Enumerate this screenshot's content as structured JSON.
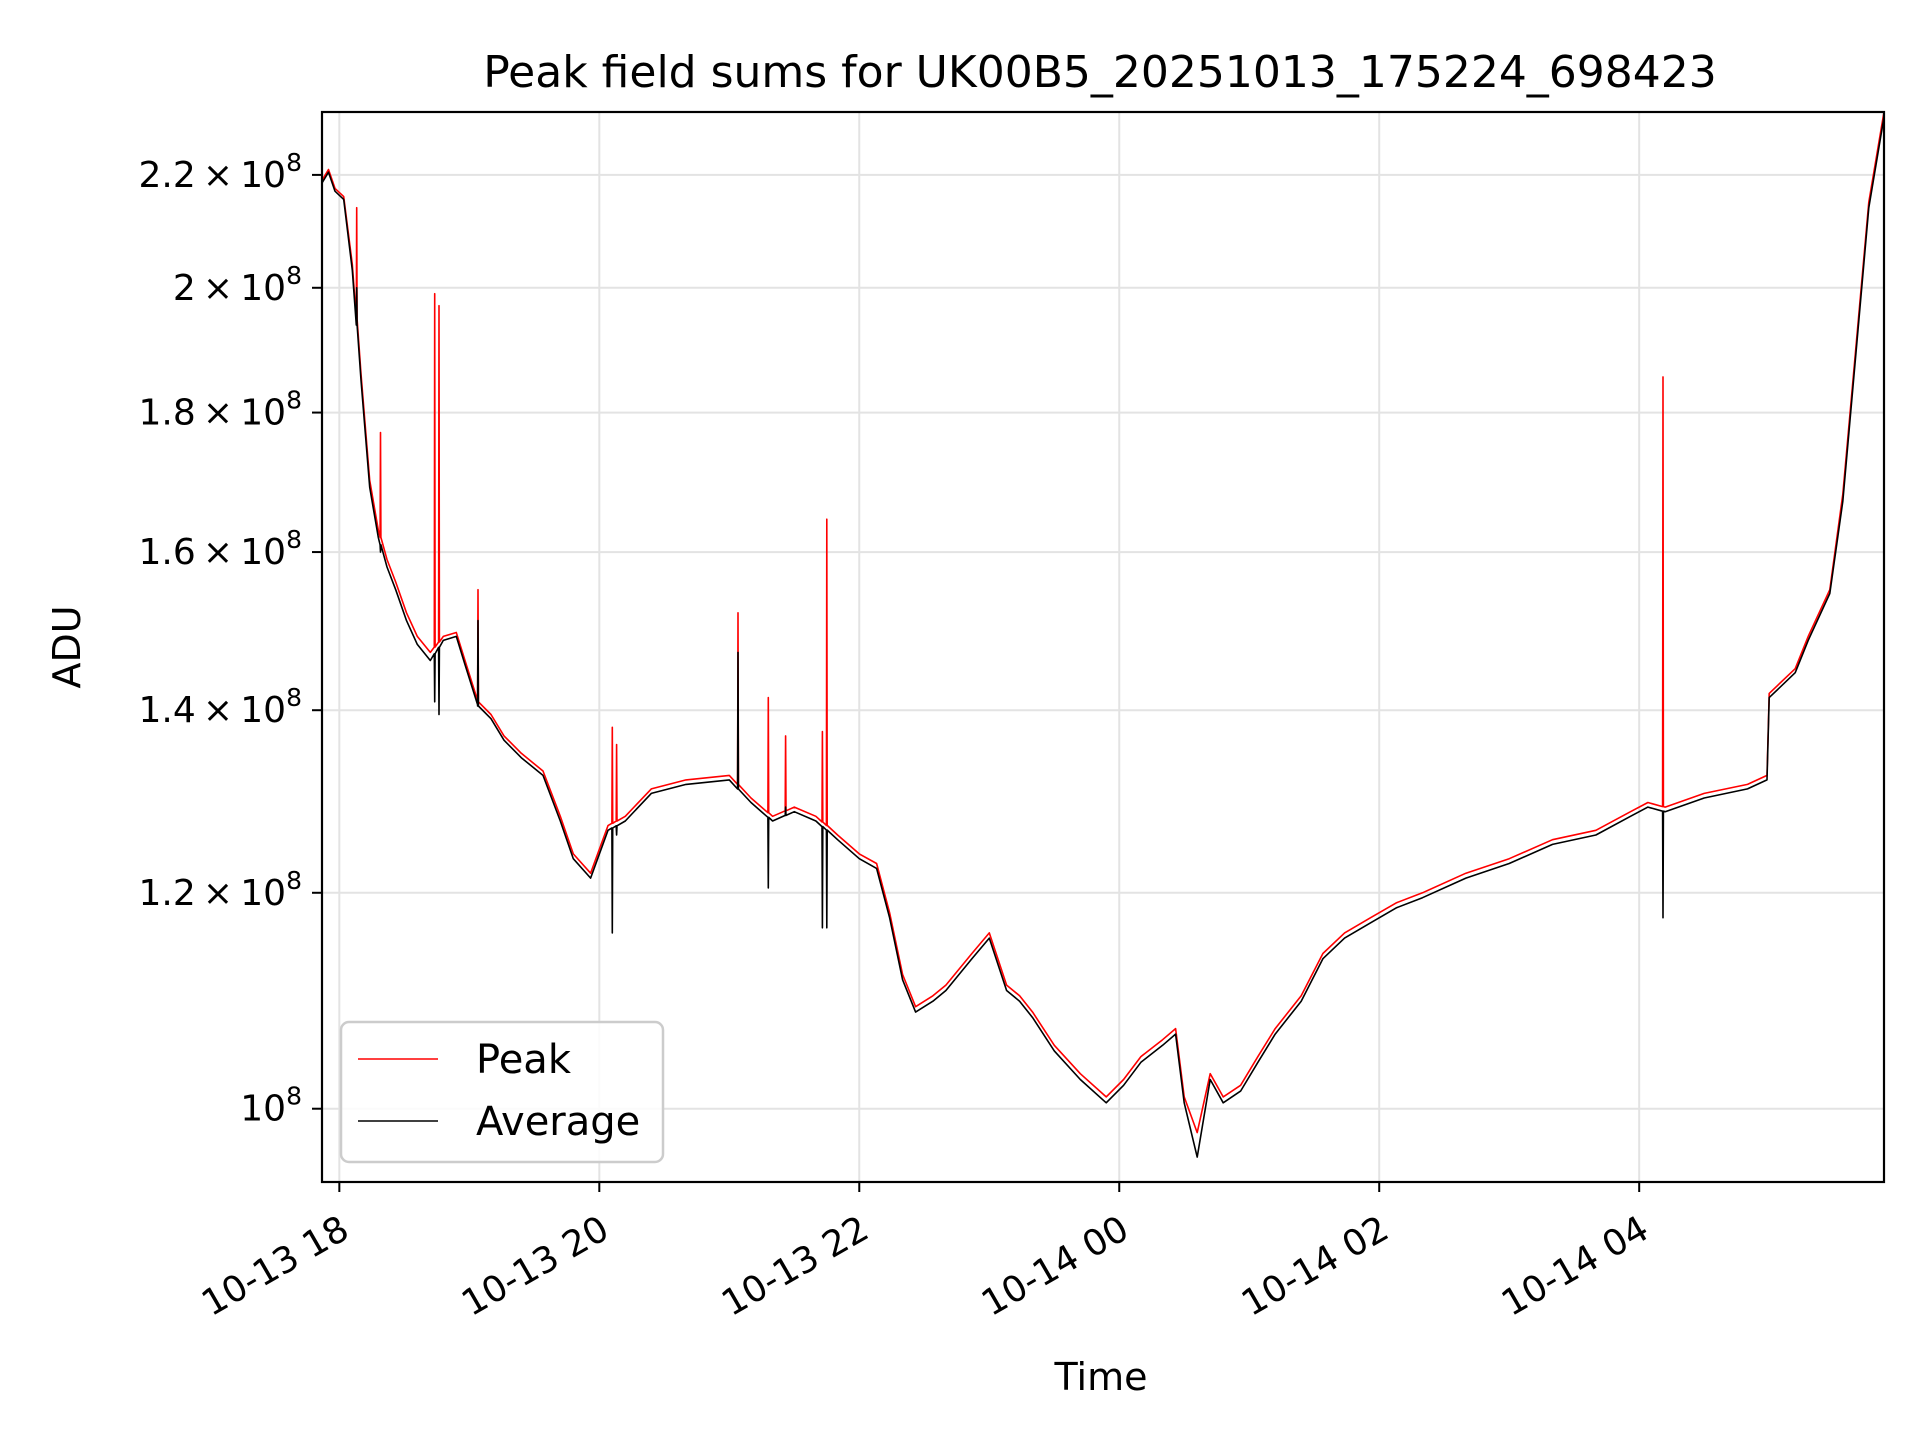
{
  "chart_data": {
    "type": "line",
    "title": "Peak field sums for UK00B5_20251013_175224_698423",
    "xlabel": "Time",
    "ylabel": "ADU",
    "yscale": "log",
    "grid": true,
    "legend_position": "lower-left",
    "x_range": [
      "2025-10-13 17:52",
      "2025-10-14 05:53"
    ],
    "ylim": [
      94000000,
      232000000
    ],
    "x_ticks": [
      "2025-10-13 18:00",
      "2025-10-13 20:00",
      "2025-10-13 22:00",
      "2025-10-14 00:00",
      "2025-10-14 02:00",
      "2025-10-14 04:00"
    ],
    "x_tick_labels": [
      "10-13 18",
      "10-13 20",
      "10-13 22",
      "10-14 00",
      "10-14 02",
      "10-14 04"
    ],
    "y_ticks": [
      100000000,
      120000000,
      140000000,
      160000000,
      180000000,
      200000000,
      220000000
    ],
    "y_tick_labels": [
      {
        "mantissa": "",
        "exponent": "8"
      },
      {
        "mantissa": "1.2",
        "exponent": "8"
      },
      {
        "mantissa": "1.4",
        "exponent": "8"
      },
      {
        "mantissa": "1.6",
        "exponent": "8"
      },
      {
        "mantissa": "1.8",
        "exponent": "8"
      },
      {
        "mantissa": "2",
        "exponent": "8"
      },
      {
        "mantissa": "2.2",
        "exponent": "8"
      }
    ],
    "series": [
      {
        "name": "Peak",
        "color": "#ff0000",
        "x": [
          "2025-10-13 17:52",
          "2025-10-13 17:55",
          "2025-10-13 17:58",
          "2025-10-13 18:02",
          "2025-10-13 18:06",
          "2025-10-13 18:10",
          "2025-10-13 18:14",
          "2025-10-13 18:18",
          "2025-10-13 18:22",
          "2025-10-13 18:26",
          "2025-10-13 18:31",
          "2025-10-13 18:36",
          "2025-10-13 18:42",
          "2025-10-13 18:48",
          "2025-10-13 18:54",
          "2025-10-13 18:58",
          "2025-10-13 19:04",
          "2025-10-13 19:10",
          "2025-10-13 19:16",
          "2025-10-13 19:24",
          "2025-10-13 19:34",
          "2025-10-13 19:42",
          "2025-10-13 19:48",
          "2025-10-13 19:56",
          "2025-10-13 20:04",
          "2025-10-13 20:12",
          "2025-10-13 20:24",
          "2025-10-13 20:40",
          "2025-10-13 21:00",
          "2025-10-13 21:10",
          "2025-10-13 21:20",
          "2025-10-13 21:30",
          "2025-10-13 21:40",
          "2025-10-13 21:50",
          "2025-10-13 22:00",
          "2025-10-13 22:08",
          "2025-10-13 22:14",
          "2025-10-13 22:20",
          "2025-10-13 22:26",
          "2025-10-13 22:34",
          "2025-10-13 22:40",
          "2025-10-13 22:52",
          "2025-10-13 23:00",
          "2025-10-13 23:08",
          "2025-10-13 23:14",
          "2025-10-13 23:20",
          "2025-10-13 23:30",
          "2025-10-13 23:42",
          "2025-10-13 23:54",
          "2025-10-14 00:02",
          "2025-10-14 00:10",
          "2025-10-14 00:20",
          "2025-10-14 00:26",
          "2025-10-14 00:30",
          "2025-10-14 00:36",
          "2025-10-14 00:42",
          "2025-10-14 00:48",
          "2025-10-14 00:56",
          "2025-10-14 01:04",
          "2025-10-14 01:12",
          "2025-10-14 01:24",
          "2025-10-14 01:34",
          "2025-10-14 01:44",
          "2025-10-14 01:56",
          "2025-10-14 02:08",
          "2025-10-14 02:20",
          "2025-10-14 02:40",
          "2025-10-14 03:00",
          "2025-10-14 03:20",
          "2025-10-14 03:40",
          "2025-10-14 03:56",
          "2025-10-14 04:04",
          "2025-10-14 04:12",
          "2025-10-14 04:30",
          "2025-10-14 04:50",
          "2025-10-14 04:59",
          "2025-10-14 05:00",
          "2025-10-14 05:12",
          "2025-10-14 05:18",
          "2025-10-14 05:28",
          "2025-10-14 05:34",
          "2025-10-14 05:40",
          "2025-10-14 05:46",
          "2025-10-14 05:53"
        ],
        "values": [
          219000000,
          221000000,
          217500000,
          216000000,
          204000000,
          186000000,
          170000000,
          163000000,
          159000000,
          156000000,
          152000000,
          149000000,
          147000000,
          149000000,
          149500000,
          146000000,
          141000000,
          139500000,
          137000000,
          135000000,
          133000000,
          128000000,
          124000000,
          122000000,
          127000000,
          128000000,
          131000000,
          132000000,
          132500000,
          130000000,
          128000000,
          129000000,
          128000000,
          126000000,
          124000000,
          123000000,
          118000000,
          112000000,
          109000000,
          110000000,
          111000000,
          114000000,
          116000000,
          111000000,
          110000000,
          108500000,
          105500000,
          103000000,
          101000000,
          102500000,
          104500000,
          106000000,
          107000000,
          101000000,
          98000000,
          103000000,
          101000000,
          102000000,
          104500000,
          107000000,
          110000000,
          114000000,
          116000000,
          117500000,
          119000000,
          120000000,
          122000000,
          123500000,
          125500000,
          126500000,
          128500000,
          129500000,
          129000000,
          130500000,
          131500000,
          132500000,
          142000000,
          145000000,
          149000000,
          155000000,
          168000000,
          190000000,
          215000000,
          232000000
        ]
      },
      {
        "name": "Average",
        "color": "#000000",
        "x": [
          "2025-10-13 17:52",
          "2025-10-13 17:55",
          "2025-10-13 17:58",
          "2025-10-13 18:02",
          "2025-10-13 18:06",
          "2025-10-13 18:10",
          "2025-10-13 18:14",
          "2025-10-13 18:18",
          "2025-10-13 18:22",
          "2025-10-13 18:26",
          "2025-10-13 18:31",
          "2025-10-13 18:36",
          "2025-10-13 18:42",
          "2025-10-13 18:48",
          "2025-10-13 18:54",
          "2025-10-13 18:58",
          "2025-10-13 19:04",
          "2025-10-13 19:10",
          "2025-10-13 19:16",
          "2025-10-13 19:24",
          "2025-10-13 19:34",
          "2025-10-13 19:42",
          "2025-10-13 19:48",
          "2025-10-13 19:56",
          "2025-10-13 20:04",
          "2025-10-13 20:12",
          "2025-10-13 20:24",
          "2025-10-13 20:40",
          "2025-10-13 21:00",
          "2025-10-13 21:10",
          "2025-10-13 21:20",
          "2025-10-13 21:30",
          "2025-10-13 21:40",
          "2025-10-13 21:50",
          "2025-10-13 22:00",
          "2025-10-13 22:08",
          "2025-10-13 22:14",
          "2025-10-13 22:20",
          "2025-10-13 22:26",
          "2025-10-13 22:34",
          "2025-10-13 22:40",
          "2025-10-13 22:52",
          "2025-10-13 23:00",
          "2025-10-13 23:08",
          "2025-10-13 23:14",
          "2025-10-13 23:20",
          "2025-10-13 23:30",
          "2025-10-13 23:42",
          "2025-10-13 23:54",
          "2025-10-14 00:02",
          "2025-10-14 00:10",
          "2025-10-14 00:20",
          "2025-10-14 00:26",
          "2025-10-14 00:30",
          "2025-10-14 00:36",
          "2025-10-14 00:42",
          "2025-10-14 00:48",
          "2025-10-14 00:56",
          "2025-10-14 01:04",
          "2025-10-14 01:12",
          "2025-10-14 01:24",
          "2025-10-14 01:34",
          "2025-10-14 01:44",
          "2025-10-14 01:56",
          "2025-10-14 02:08",
          "2025-10-14 02:20",
          "2025-10-14 02:40",
          "2025-10-14 03:00",
          "2025-10-14 03:20",
          "2025-10-14 03:40",
          "2025-10-14 03:56",
          "2025-10-14 04:04",
          "2025-10-14 04:12",
          "2025-10-14 04:30",
          "2025-10-14 04:50",
          "2025-10-14 04:59",
          "2025-10-14 05:00",
          "2025-10-14 05:12",
          "2025-10-14 05:18",
          "2025-10-14 05:28",
          "2025-10-14 05:34",
          "2025-10-14 05:40",
          "2025-10-14 05:46",
          "2025-10-14 05:53"
        ],
        "values": [
          218500000,
          220500000,
          217000000,
          215500000,
          203000000,
          185000000,
          169000000,
          162000000,
          158000000,
          155000000,
          151000000,
          148000000,
          146000000,
          148500000,
          149000000,
          145500000,
          140500000,
          139000000,
          136500000,
          134500000,
          132500000,
          127500000,
          123500000,
          121500000,
          126500000,
          127500000,
          130500000,
          131500000,
          132000000,
          129500000,
          127500000,
          128500000,
          127500000,
          125500000,
          123500000,
          122500000,
          117500000,
          111500000,
          108500000,
          109500000,
          110500000,
          113500000,
          115500000,
          110500000,
          109500000,
          108000000,
          105000000,
          102500000,
          100500000,
          102000000,
          104000000,
          105500000,
          106500000,
          100500000,
          96000000,
          102500000,
          100500000,
          101500000,
          104000000,
          106500000,
          109500000,
          113500000,
          115500000,
          117000000,
          118500000,
          119500000,
          121500000,
          123000000,
          125000000,
          126000000,
          128000000,
          129000000,
          128500000,
          130000000,
          131000000,
          132000000,
          141500000,
          144500000,
          148500000,
          154500000,
          167000000,
          189000000,
          214000000,
          231000000
        ]
      }
    ],
    "spikes": [
      {
        "x": "2025-10-13 18:08",
        "peak": 214000000,
        "average": 200000000
      },
      {
        "x": "2025-10-13 18:19",
        "peak": 177000000,
        "average": 160000000
      },
      {
        "x": "2025-10-13 18:44",
        "peak": 199000000,
        "average": 141000000
      },
      {
        "x": "2025-10-13 18:46",
        "peak": 197000000,
        "average": 139500000
      },
      {
        "x": "2025-10-13 19:04",
        "peak": 155000000,
        "average": 151000000
      },
      {
        "x": "2025-10-13 20:06",
        "peak": 138000000,
        "average": 116000000
      },
      {
        "x": "2025-10-13 20:08",
        "peak": 136000000,
        "average": 126000000
      },
      {
        "x": "2025-10-13 21:04",
        "peak": 152000000,
        "average": 147000000
      },
      {
        "x": "2025-10-13 21:18",
        "peak": 141500000,
        "average": 120500000
      },
      {
        "x": "2025-10-13 21:26",
        "peak": 137000000,
        "average": 129000000
      },
      {
        "x": "2025-10-13 21:43",
        "peak": 137500000,
        "average": 116500000
      },
      {
        "x": "2025-10-13 21:45",
        "peak": 164500000,
        "average": 116500000
      },
      {
        "x": "2025-10-14 04:11",
        "peak": 185500000,
        "average": 117500000
      }
    ]
  },
  "legend": {
    "items": [
      {
        "label": "Peak",
        "color": "#ff0000"
      },
      {
        "label": "Average",
        "color": "#000000"
      }
    ]
  }
}
